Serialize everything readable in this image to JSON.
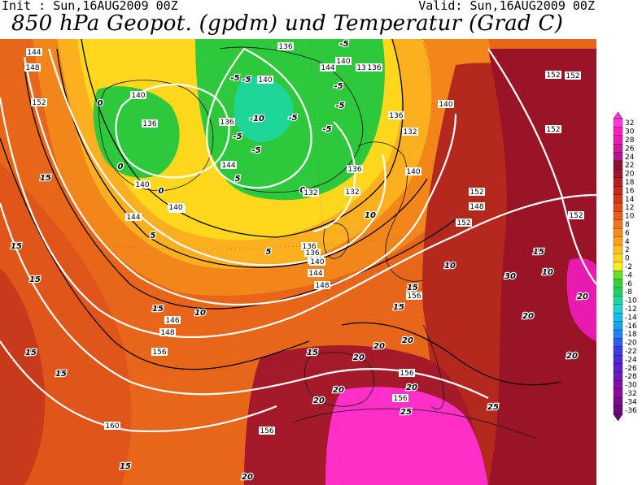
{
  "header": {
    "init": "Init : Sun,16AUG2009  00Z",
    "valid": "Valid: Sun,16AUG2009  00Z",
    "title": "850 hPa Geopot. (gpdm) und Temperatur (Grad C)"
  },
  "colorbar": {
    "labels": [
      "32",
      "30",
      "28",
      "26",
      "24",
      "22",
      "20",
      "18",
      "16",
      "14",
      "12",
      "10",
      "8",
      "6",
      "4",
      "2",
      "0",
      "-2",
      "-4",
      "-6",
      "-8",
      "-10",
      "-12",
      "-14",
      "-16",
      "-18",
      "-20",
      "-22",
      "-24",
      "-26",
      "-28",
      "-30",
      "-32",
      "-34",
      "-36"
    ],
    "colors": [
      "#ff3bd6",
      "#ff1fc0",
      "#e81ab0",
      "#cc1a9a",
      "#b0188a",
      "#8c1230",
      "#a0142c",
      "#b51f24",
      "#c42a1e",
      "#d0381a",
      "#dd4a16",
      "#e85e12",
      "#f2741a",
      "#f78a1c",
      "#fca21f",
      "#ffbe22",
      "#ffd81e",
      "#ffee1c",
      "#66e02a",
      "#3acc3a",
      "#22cc66",
      "#1fd69a",
      "#1ed3c8",
      "#19bde8",
      "#1aa0f0",
      "#2480f0",
      "#2f5ee8",
      "#3a40e0",
      "#4a2ed8",
      "#5c22c8",
      "#6e1ab8",
      "#7e12a8",
      "#8c0c98",
      "#7a0a86",
      "#6a0876"
    ]
  },
  "map": {
    "temperature_labels": [
      "0",
      "0",
      "0",
      "0",
      "-5",
      "-5",
      "-5",
      "-10",
      "-5",
      "-5",
      "-5",
      "-5",
      "-5",
      "-5",
      "5",
      "5",
      "5",
      "10",
      "10",
      "10",
      "10",
      "15",
      "15",
      "15",
      "15",
      "15",
      "15",
      "15",
      "15",
      "15",
      "15",
      "15",
      "20",
      "20",
      "20",
      "20",
      "20",
      "20",
      "20",
      "20",
      "20",
      "25",
      "25",
      "30",
      "20"
    ],
    "geopotential_labels": [
      "144",
      "148",
      "152",
      "140",
      "136",
      "140",
      "136",
      "144",
      "140",
      "144",
      "140",
      "136",
      "140",
      "136",
      "132",
      "140",
      "136",
      "132",
      "136",
      "140",
      "144",
      "148",
      "152",
      "152",
      "152",
      "152",
      "152",
      "136",
      "144",
      "140",
      "152",
      "156",
      "146",
      "136",
      "140",
      "148",
      "156",
      "156",
      "156",
      "160",
      "156",
      "148",
      "140",
      "136",
      "132"
    ]
  }
}
